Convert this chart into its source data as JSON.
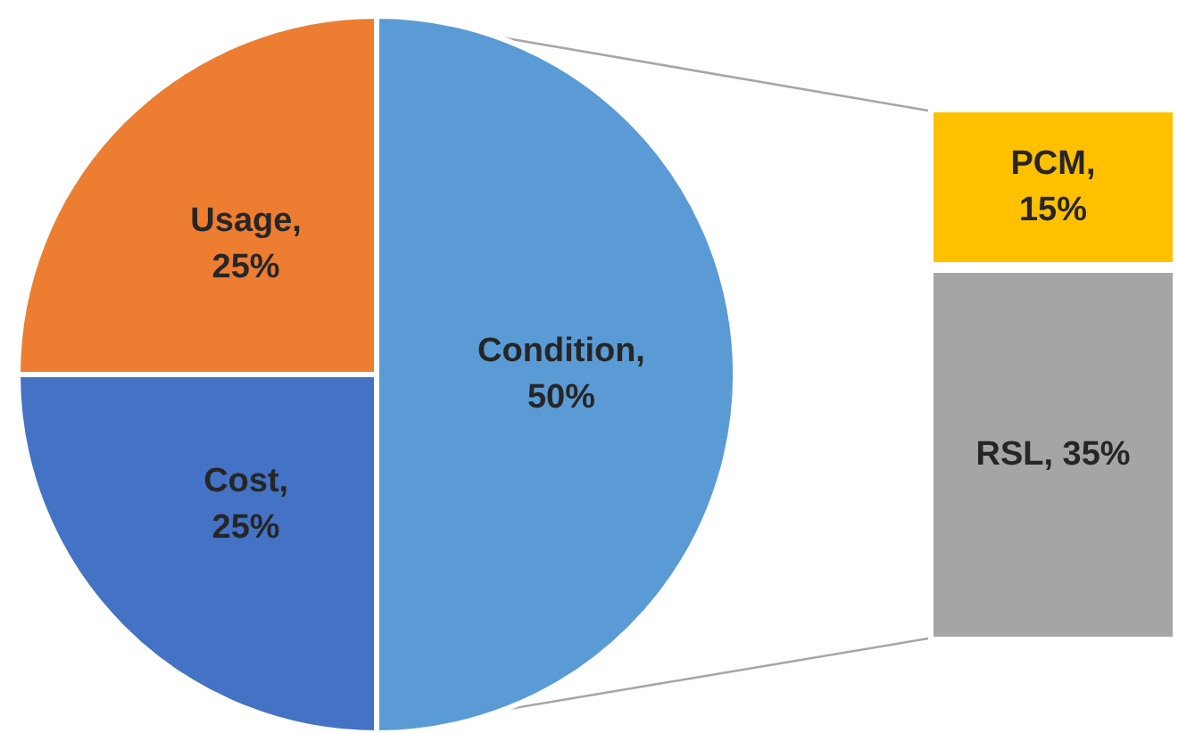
{
  "chart_data": [
    {
      "type": "pie",
      "categories": [
        "Condition",
        "Cost",
        "Usage"
      ],
      "values": [
        50,
        25,
        25
      ],
      "colors": [
        "#5b9bd5",
        "#4472c4",
        "#ed7d31"
      ],
      "value_labels": [
        ", 50%",
        ", 25%",
        ", 25%"
      ]
    },
    {
      "type": "bar",
      "stacked": true,
      "categories": [
        null
      ],
      "series": [
        {
          "name": "RSL",
          "color": "#a5a5a5",
          "values": [
            35
          ],
          "value_labels": [
            ", 35%"
          ]
        },
        {
          "name": "PCM",
          "color": "#ffc000",
          "values": [
            15
          ],
          "value_labels": [
            ", 15%"
          ]
        }
      ]
    }
  ]
}
